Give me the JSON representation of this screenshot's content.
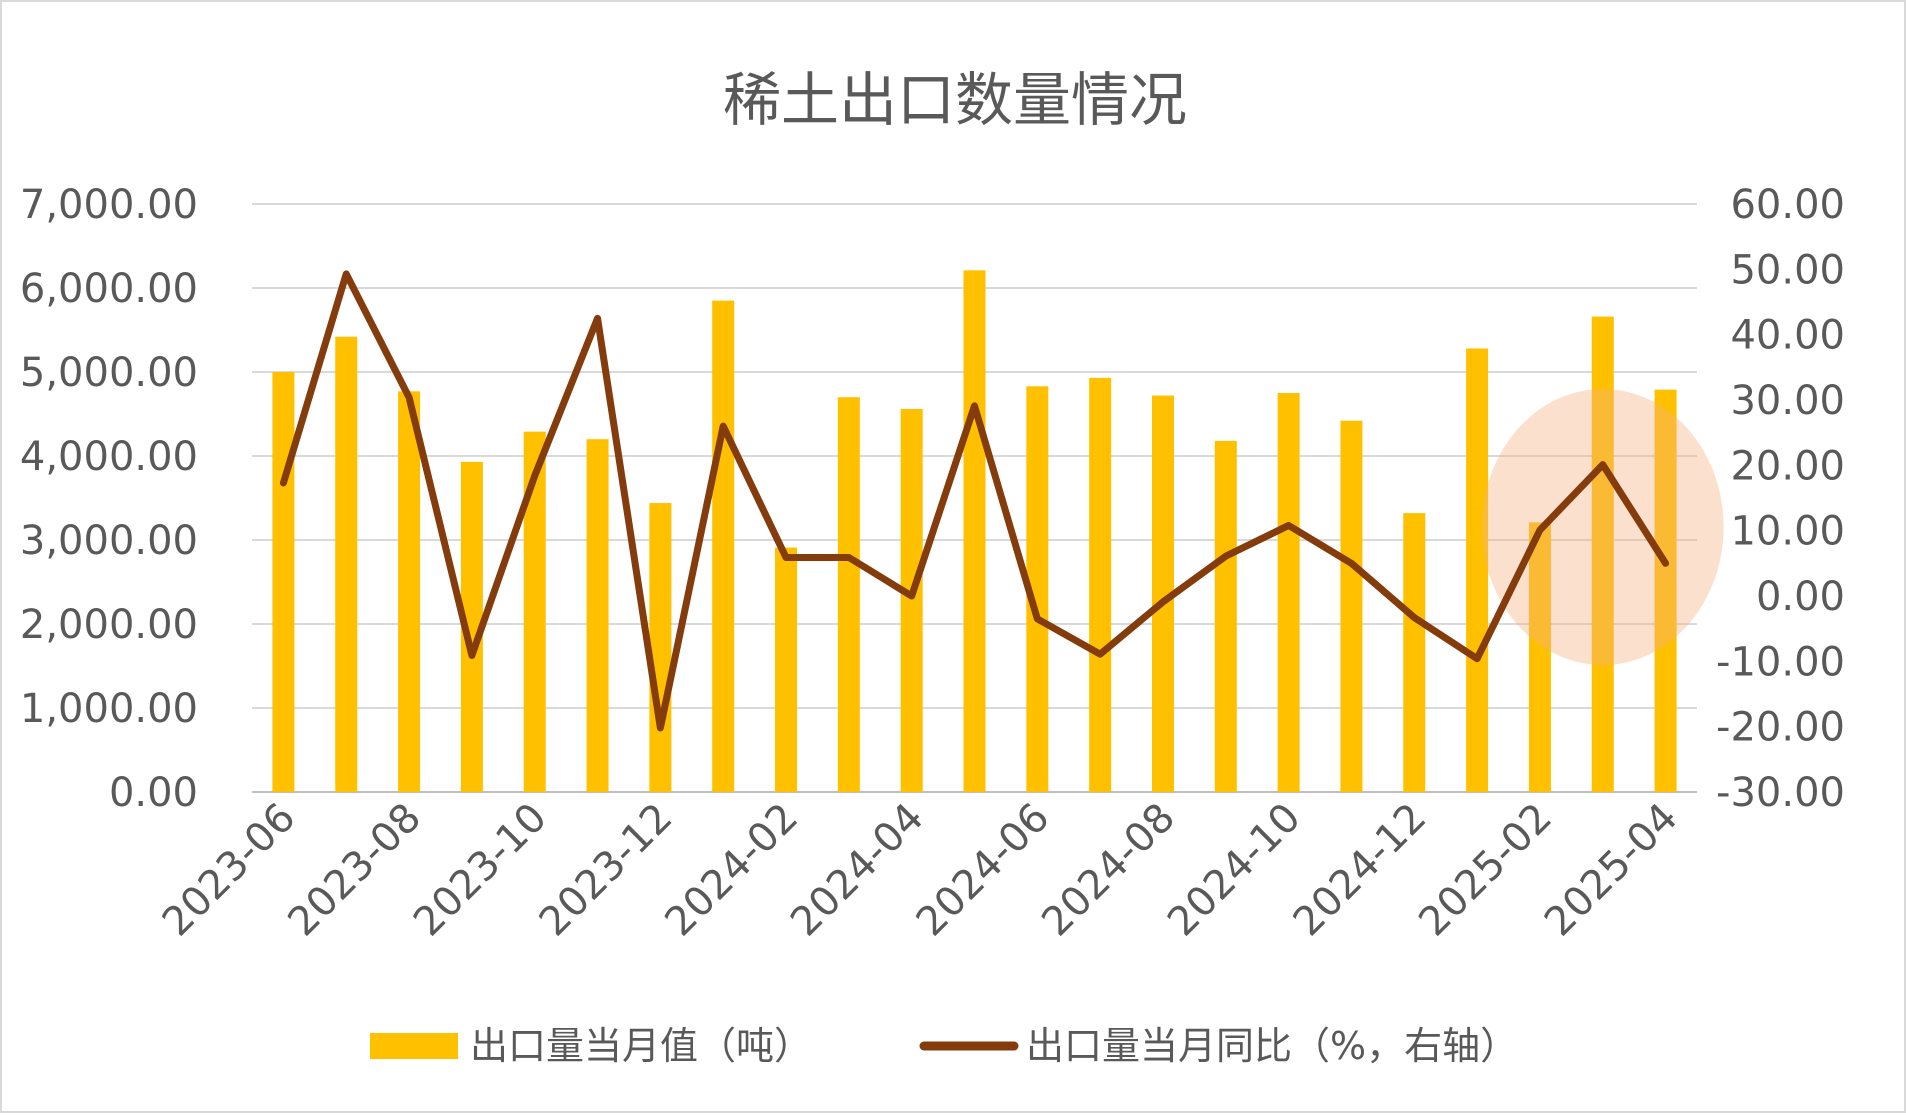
{
  "chart_data": {
    "type": "bar",
    "title": "稀土出口数量情况",
    "categories": [
      "2023-06",
      "2023-07",
      "2023-08",
      "2023-09",
      "2023-10",
      "2023-11",
      "2023-12",
      "2024-01",
      "2024-02",
      "2024-03",
      "2024-04",
      "2024-05",
      "2024-06",
      "2024-07",
      "2024-08",
      "2024-09",
      "2024-10",
      "2024-11",
      "2024-12",
      "2025-01",
      "2025-02",
      "2025-03",
      "2025-04"
    ],
    "x_tick_labels": [
      "2023-06",
      "2023-08",
      "2023-10",
      "2023-12",
      "2024-02",
      "2024-04",
      "2024-06",
      "2024-08",
      "2024-10",
      "2024-12",
      "2025-02",
      "2025-04"
    ],
    "series": [
      {
        "name": "出口量当月值（吨）",
        "type": "bar",
        "axis": "left",
        "color": "#FFC000",
        "values": [
          5000,
          5420,
          4770,
          3930,
          4290,
          4200,
          3440,
          5850,
          2910,
          4700,
          4560,
          6210,
          4830,
          4930,
          4720,
          4180,
          4750,
          4420,
          3320,
          5280,
          3210,
          5660,
          4790
        ]
      },
      {
        "name": "出口量当月同比（%，右轴）",
        "type": "line",
        "axis": "right",
        "color": "#843C0C",
        "values": [
          17.3,
          49.3,
          30.4,
          -9.1,
          18.4,
          42.5,
          -20.2,
          26.0,
          5.9,
          5.9,
          0.0,
          29.1,
          -3.5,
          -8.9,
          -0.9,
          6.1,
          10.8,
          5.0,
          -3.3,
          -9.6,
          10.1,
          20.1,
          5.0
        ]
      }
    ],
    "y_left": {
      "ylim": [
        0,
        7000
      ],
      "tick_labels": [
        "0.00",
        "1,000.00",
        "2,000.00",
        "3,000.00",
        "4,000.00",
        "5,000.00",
        "6,000.00",
        "7,000.00"
      ]
    },
    "y_right": {
      "ylim": [
        -30,
        60
      ],
      "tick_labels": [
        "-30.00",
        "-20.00",
        "-10.00",
        "0.00",
        "10.00",
        "20.00",
        "30.00",
        "40.00",
        "50.00",
        "60.00"
      ]
    },
    "grid": true,
    "legend": "bottom",
    "highlight": {
      "covers": [
        "2025-02",
        "2025-03",
        "2025-04"
      ],
      "color": "#F4B183"
    }
  }
}
